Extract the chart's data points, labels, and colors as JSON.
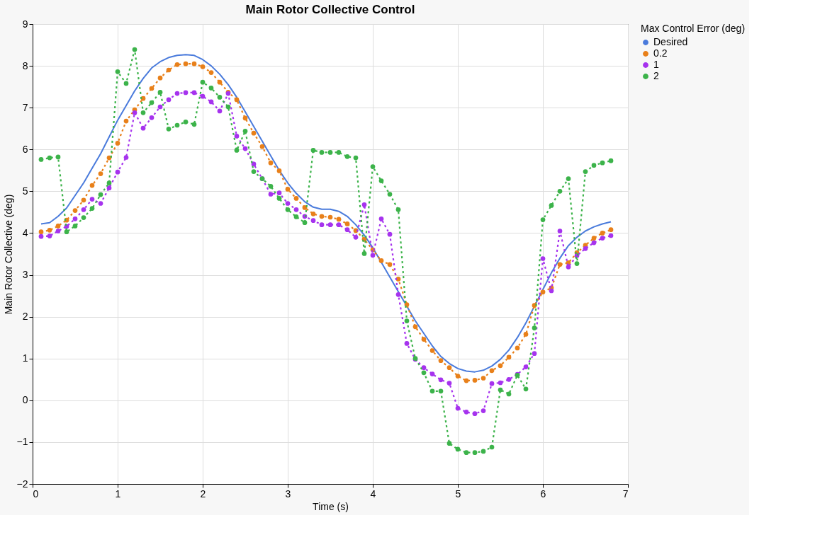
{
  "chart_data": {
    "type": "line",
    "title": "Main Rotor Collective Control",
    "xlabel": "Time (s)",
    "ylabel": "Main Rotor Collective (deg)",
    "legend_title": "Max Control Error (deg)",
    "legend": "top right",
    "grid": true,
    "xlim": [
      0,
      7
    ],
    "xticks": [
      0,
      1,
      2,
      3,
      4,
      5,
      6,
      7
    ],
    "ylim": [
      -2,
      9
    ],
    "yticks": [
      -2,
      -1,
      0,
      1,
      2,
      3,
      4,
      5,
      6,
      7,
      8,
      9
    ],
    "x": [
      0.1,
      0.2,
      0.3,
      0.4,
      0.5,
      0.6,
      0.7,
      0.8,
      0.9,
      1.0,
      1.1,
      1.2,
      1.3,
      1.4,
      1.5,
      1.6,
      1.7,
      1.8,
      1.9,
      2.0,
      2.1,
      2.2,
      2.3,
      2.4,
      2.5,
      2.6,
      2.7,
      2.8,
      2.9,
      3.0,
      3.1,
      3.2,
      3.3,
      3.4,
      3.5,
      3.6,
      3.7,
      3.8,
      3.9,
      4.0,
      4.1,
      4.2,
      4.3,
      4.4,
      4.5,
      4.6,
      4.7,
      4.8,
      4.9,
      5.0,
      5.1,
      5.2,
      5.3,
      5.4,
      5.5,
      5.6,
      5.7,
      5.8,
      5.9,
      6.0,
      6.1,
      6.2,
      6.3,
      6.4,
      6.5,
      6.6,
      6.7,
      6.8
    ],
    "series": [
      {
        "name": "Desired",
        "color": "#4a7bdc",
        "line_style": "solid",
        "marker": "none",
        "values": [
          4.22,
          4.25,
          4.4,
          4.6,
          4.9,
          5.2,
          5.55,
          5.9,
          6.3,
          6.7,
          7.05,
          7.4,
          7.7,
          7.95,
          8.1,
          8.2,
          8.25,
          8.27,
          8.25,
          8.15,
          8.0,
          7.8,
          7.55,
          7.25,
          6.9,
          6.55,
          6.2,
          5.85,
          5.5,
          5.2,
          4.95,
          4.75,
          4.62,
          4.57,
          4.57,
          4.52,
          4.4,
          4.2,
          3.95,
          3.65,
          3.3,
          2.95,
          2.6,
          2.25,
          1.9,
          1.6,
          1.3,
          1.05,
          0.88,
          0.76,
          0.7,
          0.68,
          0.72,
          0.82,
          0.98,
          1.2,
          1.5,
          1.85,
          2.25,
          2.65,
          3.05,
          3.4,
          3.7,
          3.9,
          4.05,
          4.15,
          4.22,
          4.27
        ]
      },
      {
        "name": "0.2",
        "color": "#e8801a",
        "line_style": "dotted",
        "marker": "circle",
        "values": [
          4.03,
          4.07,
          4.17,
          4.31,
          4.54,
          4.79,
          5.14,
          5.42,
          5.8,
          6.15,
          6.68,
          6.95,
          7.22,
          7.46,
          7.71,
          7.9,
          8.03,
          8.05,
          8.05,
          7.98,
          7.84,
          7.61,
          7.37,
          7.19,
          6.75,
          6.39,
          6.07,
          5.68,
          5.49,
          5.05,
          4.83,
          4.61,
          4.46,
          4.4,
          4.38,
          4.33,
          4.22,
          4.06,
          3.85,
          3.6,
          3.34,
          3.25,
          2.9,
          2.29,
          1.76,
          1.46,
          1.19,
          0.95,
          0.78,
          0.58,
          0.47,
          0.48,
          0.53,
          0.71,
          0.83,
          1.03,
          1.25,
          1.58,
          2.27,
          2.59,
          2.69,
          3.25,
          3.29,
          3.53,
          3.71,
          3.88,
          4.0,
          4.08
        ]
      },
      {
        "name": "1",
        "color": "#a633ee",
        "line_style": "dotted",
        "marker": "circle",
        "values": [
          3.92,
          3.93,
          4.05,
          4.16,
          4.34,
          4.56,
          4.81,
          4.71,
          5.08,
          5.46,
          5.81,
          6.88,
          6.51,
          6.76,
          7.02,
          7.19,
          7.34,
          7.36,
          7.36,
          7.27,
          7.14,
          6.92,
          7.34,
          6.32,
          6.02,
          5.65,
          5.3,
          4.93,
          4.96,
          4.71,
          4.56,
          4.4,
          4.3,
          4.2,
          4.2,
          4.2,
          4.08,
          3.9,
          4.68,
          3.47,
          4.34,
          3.97,
          2.53,
          1.36,
          0.98,
          0.78,
          0.63,
          0.49,
          0.41,
          -0.19,
          -0.28,
          -0.32,
          -0.25,
          0.4,
          0.42,
          0.5,
          0.62,
          0.8,
          1.12,
          3.39,
          2.62,
          4.05,
          3.19,
          3.46,
          3.63,
          3.77,
          3.88,
          3.94
        ]
      },
      {
        "name": "2",
        "color": "#3cb34a",
        "line_style": "dotted",
        "marker": "circle",
        "values": [
          5.76,
          5.8,
          5.82,
          4.03,
          4.17,
          4.37,
          4.59,
          4.92,
          5.2,
          7.86,
          7.58,
          8.39,
          6.88,
          7.12,
          7.37,
          6.49,
          6.58,
          6.66,
          6.6,
          7.61,
          7.47,
          7.25,
          7.02,
          5.98,
          6.44,
          5.47,
          5.3,
          5.12,
          4.83,
          4.56,
          4.39,
          4.25,
          5.98,
          5.93,
          5.93,
          5.93,
          5.83,
          5.8,
          3.51,
          5.59,
          5.25,
          4.93,
          4.56,
          1.9,
          1.0,
          0.66,
          0.22,
          0.22,
          -1.03,
          -1.17,
          -1.25,
          -1.25,
          -1.22,
          -1.12,
          0.25,
          0.15,
          0.6,
          0.27,
          1.73,
          4.32,
          4.66,
          5.0,
          5.3,
          3.27,
          5.47,
          5.62,
          5.68,
          5.73
        ]
      }
    ]
  }
}
